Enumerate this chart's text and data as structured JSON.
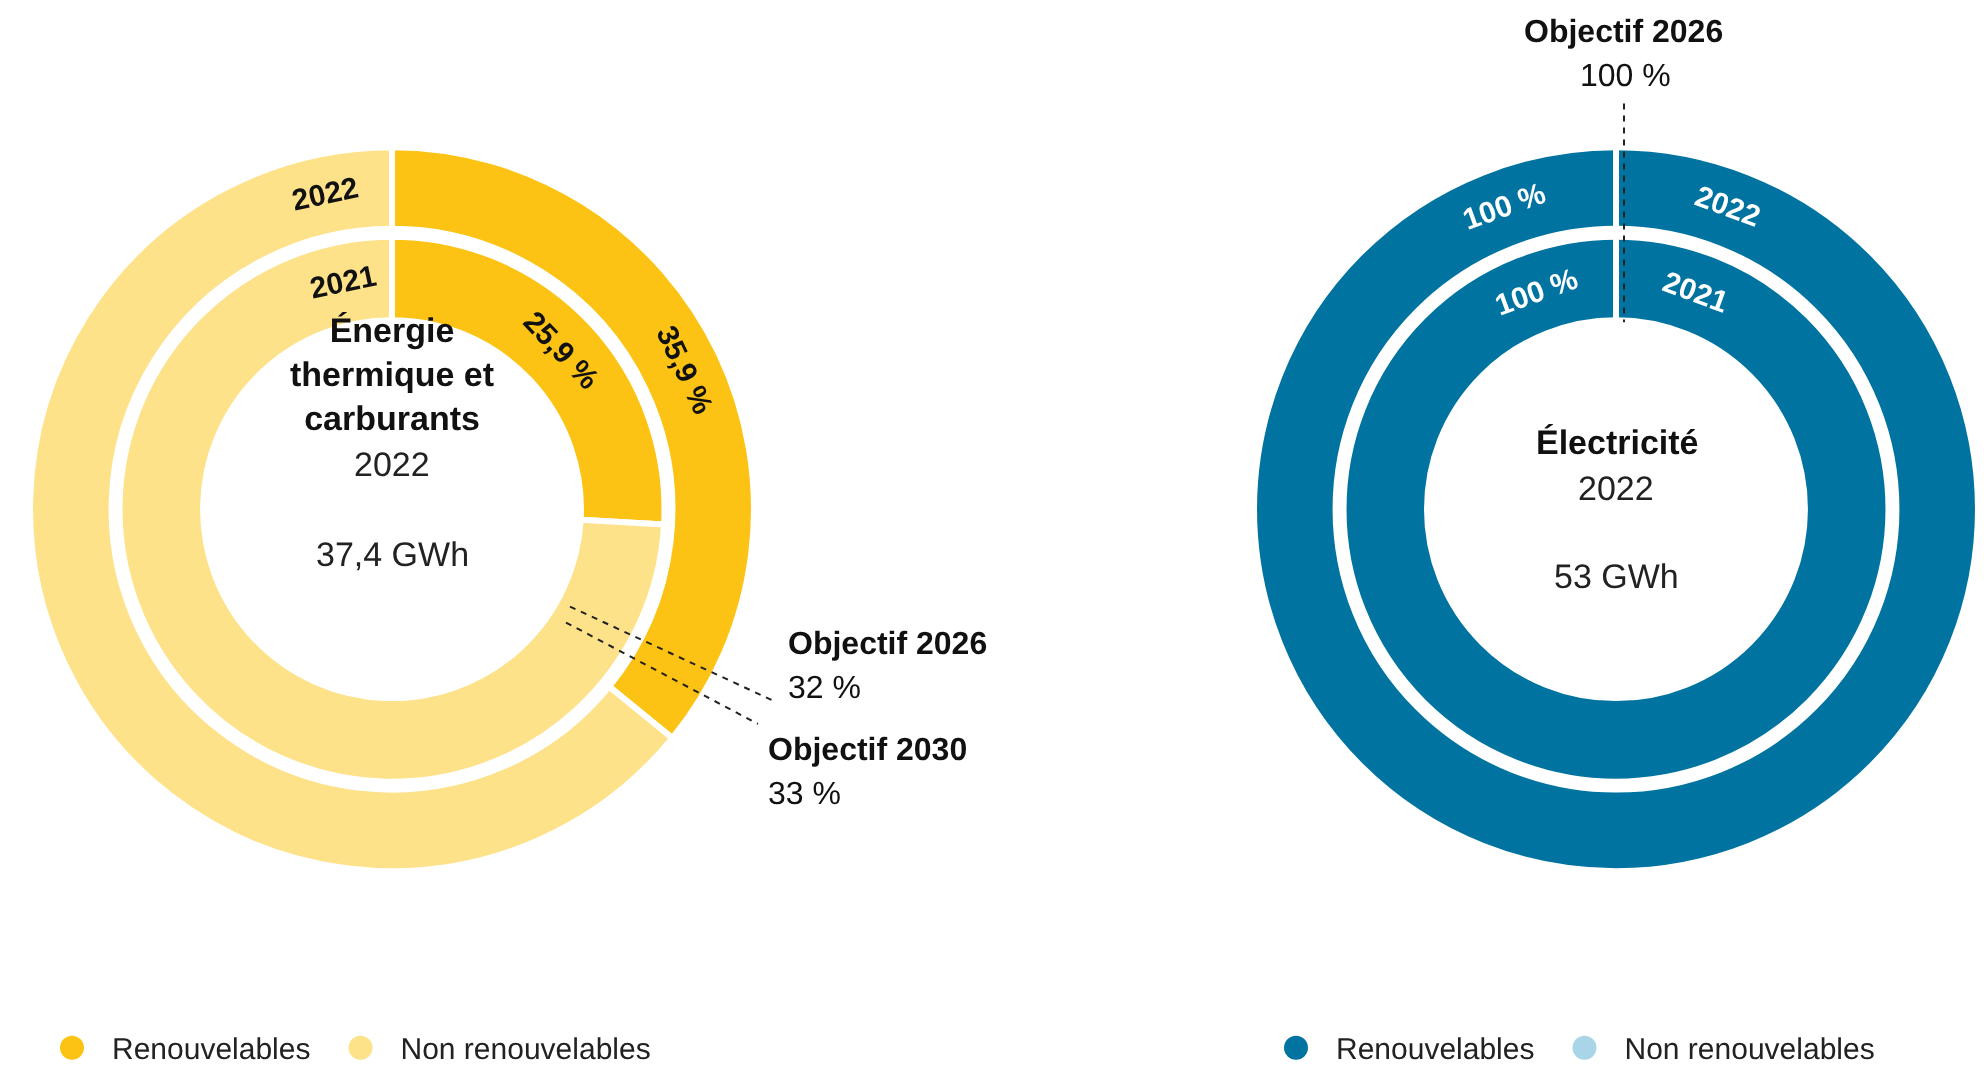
{
  "chart_data": [
    {
      "type": "donut",
      "title": "Énergie thermique et carburants",
      "subtitle": "2022",
      "annotations": [
        "37,4 GWh",
        "Objectif 2026\n32 %",
        "Objectif 2030\n33 %"
      ],
      "categories": [
        "Renouvelables",
        "Non renouvelables"
      ],
      "colors": [
        "#fcc314",
        "#fde28a"
      ],
      "series": [
        {
          "name": "2021",
          "values": [
            25.9,
            74.1
          ],
          "value_labels": [
            "25,9 %",
            null
          ]
        },
        {
          "name": "2022",
          "values": [
            35.9,
            64.1
          ],
          "value_labels": [
            "35,9 %",
            null
          ]
        }
      ],
      "legend": "bottom"
    },
    {
      "type": "donut",
      "title": "Électricité",
      "subtitle": "2022",
      "annotations": [
        "53 GWh",
        "Objectif 2026\n100 %"
      ],
      "categories": [
        "Renouvelables",
        "Non renouvelables"
      ],
      "colors": [
        "#0073a0",
        "#a8d5e8"
      ],
      "series": [
        {
          "name": "2021",
          "values": [
            100,
            0
          ],
          "value_labels": [
            "100 %",
            null
          ]
        },
        {
          "name": "2022",
          "values": [
            100,
            0
          ],
          "value_labels": [
            "100 %",
            null
          ]
        }
      ],
      "legend": "bottom"
    }
  ]
}
